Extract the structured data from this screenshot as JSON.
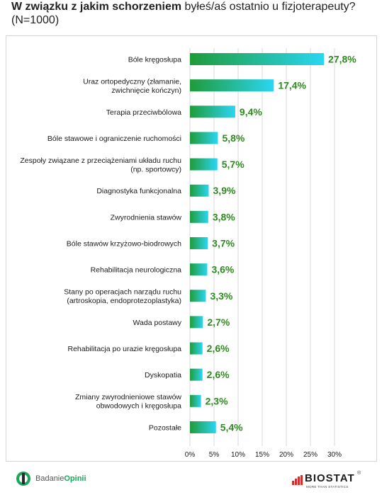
{
  "title": {
    "bold": "W związku z jakim schorzeniem",
    "rest": "byłeś/aś ostatnio u fizjoterapeuty?",
    "sample": "(N=1000)"
  },
  "colors": {
    "bar_start": "#1f9b3a",
    "bar_end": "#2ad6f2",
    "value_text": "#2e8b1f",
    "grid": "#d9d9d9"
  },
  "chart_data": {
    "type": "bar",
    "orientation": "horizontal",
    "categories": [
      [
        "Bóle kręgosłupa"
      ],
      [
        "Uraz ortopedyczny (złamanie,",
        "zwichnięcie kończyn)"
      ],
      [
        "Terapia przeciwbólowa"
      ],
      [
        "Bóle stawowe i ograniczenie ruchomości"
      ],
      [
        "Zespoły związane z przeciążeniami układu ruchu",
        "(np. sportowcy)"
      ],
      [
        "Diagnostyka funkcjonalna"
      ],
      [
        "Zwyrodnienia stawów"
      ],
      [
        "Bóle stawów krzyżowo-biodrowych"
      ],
      [
        "Rehabilitacja neurologiczna"
      ],
      [
        "Stany po operacjach narządu ruchu",
        "(artroskopia, endoprotezoplastyka)"
      ],
      [
        "Wada postawy"
      ],
      [
        "Rehabilitacja po urazie kręgosłupa"
      ],
      [
        "Dyskopatia"
      ],
      [
        "Zmiany zwyrodnieniowe stawów",
        "obwodowych i kręgosłupa"
      ],
      [
        "Pozostałe"
      ]
    ],
    "values": [
      27.8,
      17.4,
      9.4,
      5.8,
      5.7,
      3.9,
      3.8,
      3.7,
      3.6,
      3.3,
      2.7,
      2.6,
      2.6,
      2.3,
      5.4
    ],
    "value_labels": [
      "27,8%",
      "17,4%",
      "9,4%",
      "5,8%",
      "5,7%",
      "3,9%",
      "3,8%",
      "3,7%",
      "3,6%",
      "3,3%",
      "2,7%",
      "2,6%",
      "2,6%",
      "2,3%",
      "5,4%"
    ],
    "x_ticks": [
      0,
      5,
      10,
      15,
      20,
      25,
      30
    ],
    "x_tick_labels": [
      "0%",
      "5%",
      "10%",
      "15%",
      "20%",
      "25%",
      "30%"
    ],
    "xlim": [
      0,
      30
    ],
    "grid": "vertical"
  },
  "footer": {
    "left_logo_text_1": "Badanie",
    "left_logo_text_2": "Opinii",
    "right_logo_brand": "BIOSTAT",
    "right_logo_tagline": "MORE THAN STATISTICS",
    "right_logo_reg": "®"
  }
}
